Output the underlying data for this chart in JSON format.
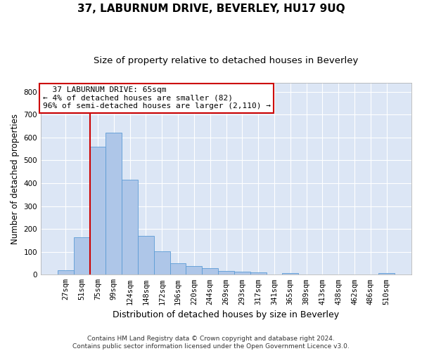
{
  "title": "37, LABURNUM DRIVE, BEVERLEY, HU17 9UQ",
  "subtitle": "Size of property relative to detached houses in Beverley",
  "xlabel": "Distribution of detached houses by size in Beverley",
  "ylabel": "Number of detached properties",
  "bar_color": "#aec6e8",
  "bar_edge_color": "#5b9bd5",
  "background_color": "#dce6f5",
  "grid_color": "#ffffff",
  "bins": [
    "27sqm",
    "51sqm",
    "75sqm",
    "99sqm",
    "124sqm",
    "148sqm",
    "172sqm",
    "196sqm",
    "220sqm",
    "244sqm",
    "269sqm",
    "293sqm",
    "317sqm",
    "341sqm",
    "365sqm",
    "389sqm",
    "413sqm",
    "438sqm",
    "462sqm",
    "486sqm",
    "510sqm"
  ],
  "values": [
    18,
    165,
    560,
    620,
    415,
    170,
    103,
    50,
    38,
    30,
    15,
    13,
    10,
    0,
    8,
    0,
    0,
    0,
    0,
    0,
    7
  ],
  "ylim": [
    0,
    840
  ],
  "yticks": [
    0,
    100,
    200,
    300,
    400,
    500,
    600,
    700,
    800
  ],
  "property_line_x": 1.5,
  "annotation_box_text": "  37 LABURNUM DRIVE: 65sqm  \n← 4% of detached houses are smaller (82)\n96% of semi-detached houses are larger (2,110) →",
  "annotation_box_color": "#ffffff",
  "annotation_box_edge_color": "#cc0000",
  "vline_color": "#cc0000",
  "footer_text": "Contains HM Land Registry data © Crown copyright and database right 2024.\nContains public sector information licensed under the Open Government Licence v3.0.",
  "title_fontsize": 11,
  "subtitle_fontsize": 9.5,
  "xlabel_fontsize": 9,
  "ylabel_fontsize": 8.5,
  "tick_fontsize": 7.5,
  "annotation_fontsize": 8,
  "footer_fontsize": 6.5
}
